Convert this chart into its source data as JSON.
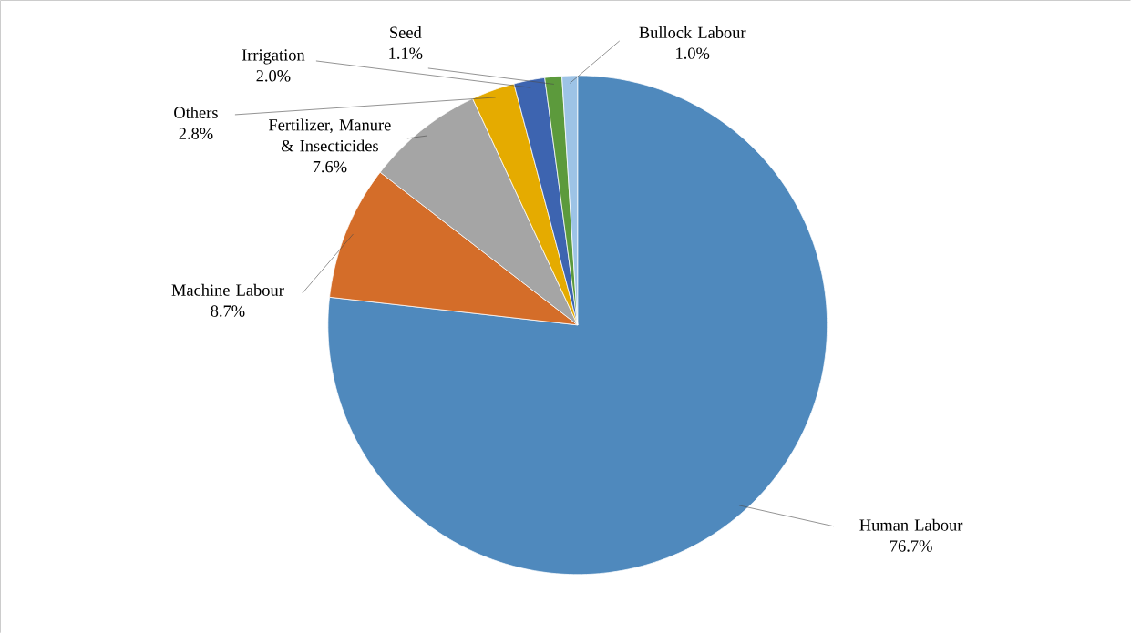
{
  "chart_data": {
    "type": "pie",
    "categories": [
      "Human Labour",
      "Machine Labour",
      "Fertilizer, Manure & Insecticides",
      "Others",
      "Irrigation",
      "Seed",
      "Bullock Labour"
    ],
    "values": [
      76.7,
      8.7,
      7.6,
      2.8,
      2.0,
      1.1,
      1.0
    ],
    "value_labels": [
      "76.7%",
      "8.7%",
      "7.6%",
      "2.8%",
      "2.0%",
      "1.1%",
      "1.0%"
    ],
    "colors": [
      "#4f89bd",
      "#d46d29",
      "#a5a5a5",
      "#e5ab00",
      "#3d64b0",
      "#5c9a3c",
      "#9dc3e6"
    ]
  }
}
